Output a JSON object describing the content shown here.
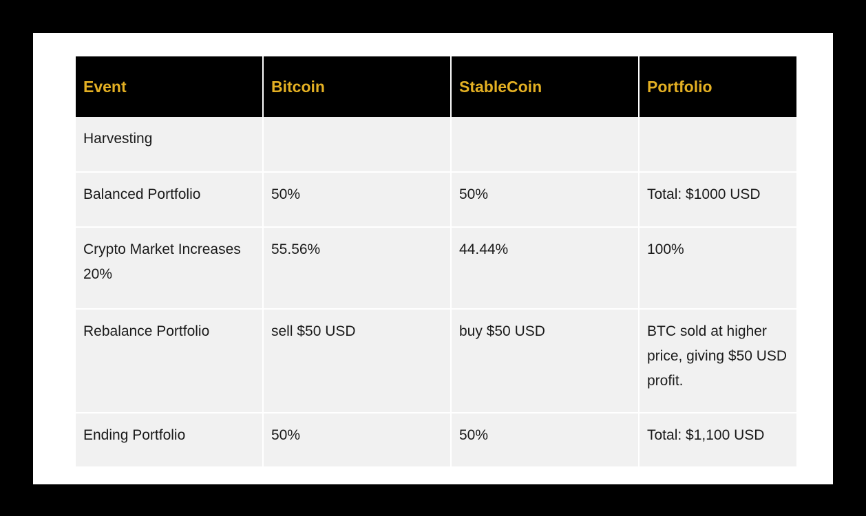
{
  "table": {
    "headers": [
      "Event",
      "Bitcoin",
      "StableCoin",
      "Portfolio"
    ],
    "rows": [
      [
        "Harvesting",
        "",
        "",
        ""
      ],
      [
        "Balanced Portfolio",
        "50%",
        "50%",
        "Total: $1000 USD"
      ],
      [
        "Crypto Market Increases 20%",
        "55.56%",
        "44.44%",
        "100%"
      ],
      [
        "Rebalance Portfolio",
        "sell $50 USD",
        "buy $50 USD",
        "BTC sold at higher price, giving $50 USD profit."
      ],
      [
        "Ending Portfolio",
        "50%",
        "50%",
        "Total: $1,100 USD"
      ]
    ]
  },
  "colors": {
    "header_bg": "#000000",
    "header_text": "#e4b023",
    "cell_bg": "#f1f1f1",
    "frame": "#000000"
  }
}
